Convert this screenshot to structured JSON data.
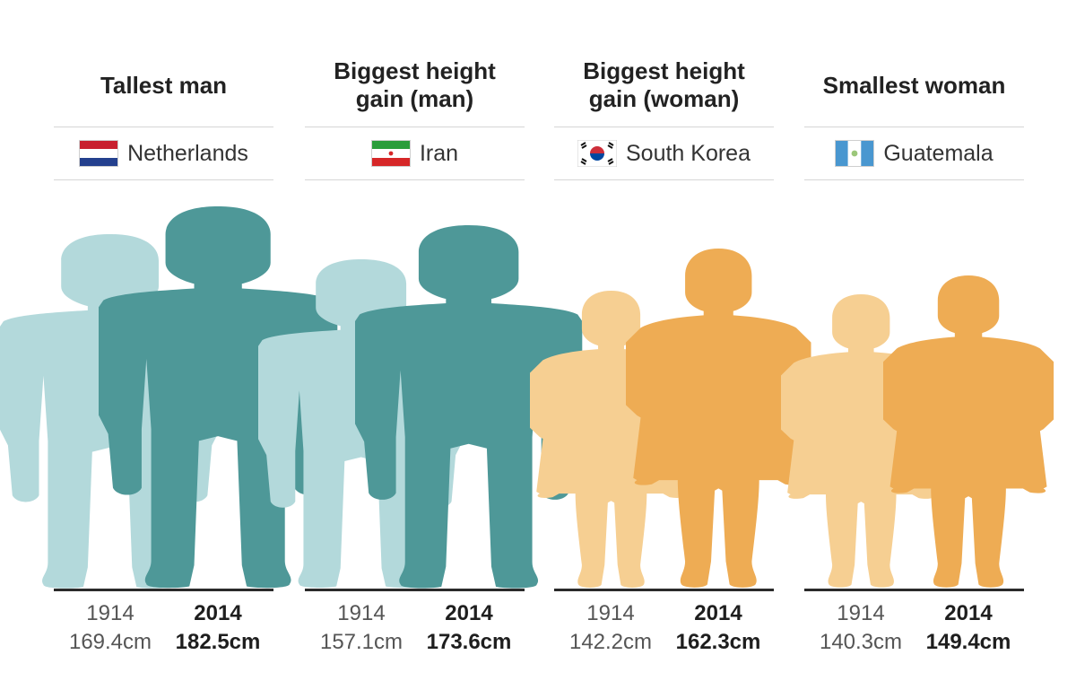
{
  "chart_data": {
    "type": "bar",
    "unit": "cm",
    "panels": [
      {
        "title_lines": [
          "Tallest man"
        ],
        "country": "Netherlands",
        "flag": "netherlands-flag",
        "figure": "man",
        "colors": {
          "old": "#b3d9db",
          "new": "#4e9898"
        },
        "bars": [
          {
            "year": "1914",
            "value": 169.4,
            "label": "169.4cm"
          },
          {
            "year": "2014",
            "value": 182.5,
            "label": "182.5cm"
          }
        ]
      },
      {
        "title_lines": [
          "Biggest height",
          "gain (man)"
        ],
        "country": "Iran",
        "flag": "iran-flag",
        "figure": "man",
        "colors": {
          "old": "#b3d9db",
          "new": "#4e9898"
        },
        "bars": [
          {
            "year": "1914",
            "value": 157.1,
            "label": "157.1cm"
          },
          {
            "year": "2014",
            "value": 173.6,
            "label": "173.6cm"
          }
        ]
      },
      {
        "title_lines": [
          "Biggest height",
          "gain (woman)"
        ],
        "country": "South Korea",
        "flag": "south-korea-flag",
        "figure": "woman",
        "colors": {
          "old": "#f6cf92",
          "new": "#eeac54"
        },
        "bars": [
          {
            "year": "1914",
            "value": 142.2,
            "label": "142.2cm"
          },
          {
            "year": "2014",
            "value": 162.3,
            "label": "162.3cm"
          }
        ]
      },
      {
        "title_lines": [
          "Smallest woman"
        ],
        "country": "Guatemala",
        "flag": "guatemala-flag",
        "figure": "woman",
        "colors": {
          "old": "#f6cf92",
          "new": "#eeac54"
        },
        "bars": [
          {
            "year": "1914",
            "value": 140.3,
            "label": "140.3cm"
          },
          {
            "year": "2014",
            "value": 149.4,
            "label": "149.4cm"
          }
        ]
      }
    ]
  }
}
